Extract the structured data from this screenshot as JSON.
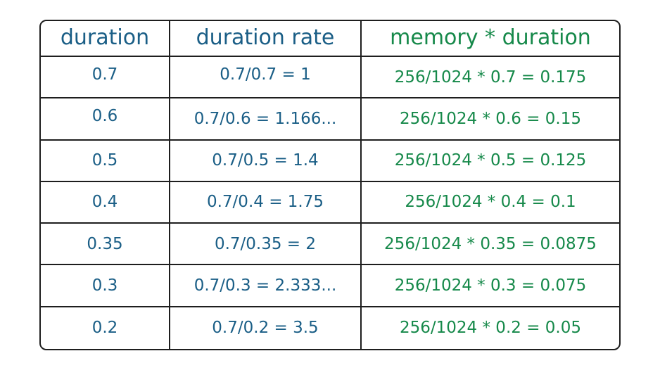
{
  "colors": {
    "blue_text": "#1a5e86",
    "green_text": "#16894a",
    "border": "#1e1e1e"
  },
  "headers": [
    "duration",
    "duration rate",
    "memory * duration"
  ],
  "rows": [
    {
      "duration": "0.7",
      "rate": "0.7/0.7 = 1",
      "memory": "256/1024 * 0.7 = 0.175"
    },
    {
      "duration": "0.6",
      "rate": "0.7/0.6 = 1.166...",
      "memory": "256/1024 * 0.6 = 0.15"
    },
    {
      "duration": "0.5",
      "rate": "0.7/0.5 = 1.4",
      "memory": "256/1024 * 0.5 = 0.125"
    },
    {
      "duration": "0.4",
      "rate": "0.7/0.4 = 1.75",
      "memory": "256/1024 * 0.4 = 0.1"
    },
    {
      "duration": "0.35",
      "rate": "0.7/0.35 = 2",
      "memory": "256/1024 * 0.35 = 0.0875"
    },
    {
      "duration": "0.3",
      "rate": "0.7/0.3 = 2.333...",
      "memory": "256/1024 * 0.3 = 0.075"
    },
    {
      "duration": "0.2",
      "rate": "0.7/0.2 = 3.5",
      "memory": "256/1024 * 0.2 = 0.05"
    }
  ]
}
